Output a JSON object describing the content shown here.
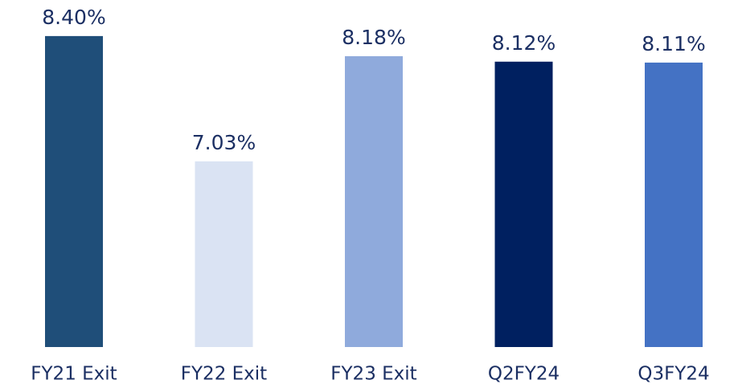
{
  "chart_data": {
    "type": "bar",
    "categories": [
      "FY21 Exit",
      "FY22 Exit",
      "FY23 Exit",
      "Q2FY24",
      "Q3FY24"
    ],
    "values": [
      8.4,
      7.03,
      8.18,
      8.12,
      8.11
    ],
    "value_labels": [
      "8.40%",
      "7.03%",
      "8.18%",
      "8.12%",
      "8.11%"
    ],
    "colors": [
      "#1f4e79",
      "#dae3f3",
      "#8faadc",
      "#002060",
      "#4472c4"
    ],
    "ylim": [
      5,
      8.5
    ]
  }
}
